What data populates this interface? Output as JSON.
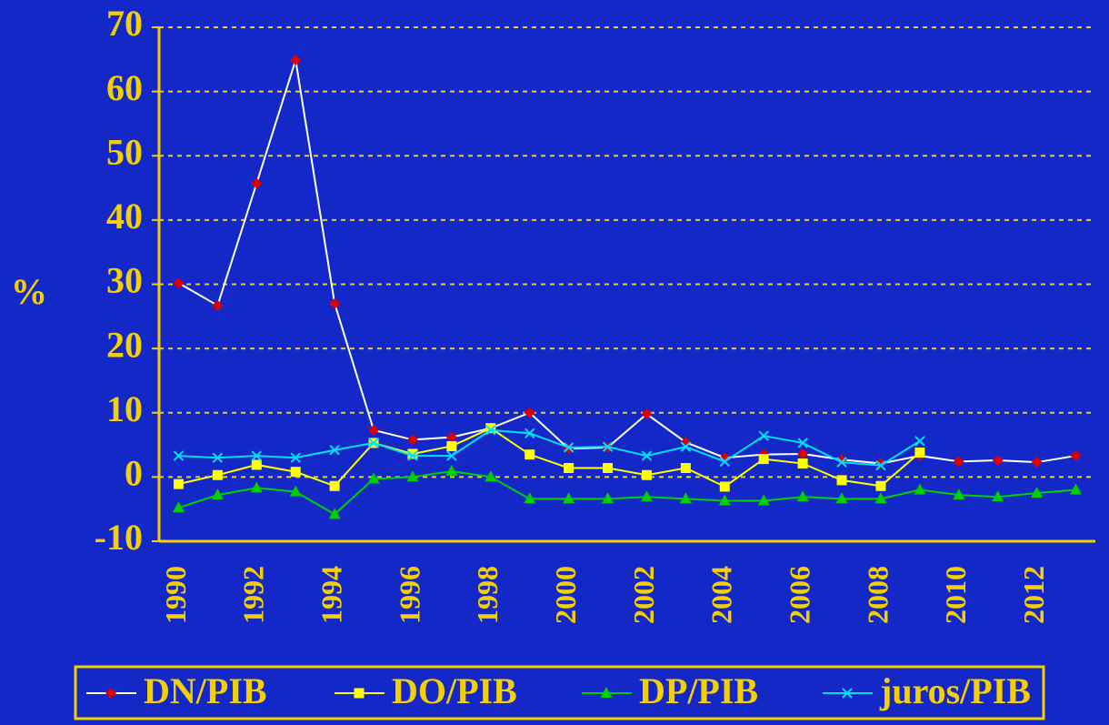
{
  "chart_data": {
    "type": "line",
    "y_label": "%",
    "categories": [
      "1990",
      null,
      "1992",
      null,
      "1994",
      null,
      "1996",
      null,
      "1998",
      null,
      "2000",
      null,
      "2002",
      null,
      "2004",
      null,
      "2006",
      null,
      "2008",
      null,
      "2010",
      null,
      "2012",
      null
    ],
    "series": [
      {
        "name": "DN/PIB",
        "color": "#e00000",
        "line_color": "#ffffff",
        "marker": "diamond",
        "values": [
          30.2,
          26.7,
          45.7,
          64.9,
          27,
          7.3,
          5.8,
          6.2,
          7.6,
          10,
          4.4,
          4.6,
          9.8,
          5.4,
          3,
          3.5,
          3.6,
          2.7,
          2.1,
          3.3,
          2.4,
          2.6,
          2.3,
          3.3
        ]
      },
      {
        "name": "DO/PIB",
        "color": "#ffff00",
        "line_color": "#ffff00",
        "marker": "square",
        "values": [
          -1.1,
          0.3,
          1.9,
          0.8,
          -1.4,
          5.3,
          3.6,
          4.8,
          7.6,
          3.5,
          1.4,
          1.4,
          0.3,
          1.4,
          -1.5,
          2.8,
          2.1,
          -0.5,
          -1.4,
          3.8,
          null,
          null,
          null,
          null
        ]
      },
      {
        "name": "DP/PIB",
        "color": "#00d000",
        "line_color": "#00d000",
        "marker": "triangle",
        "values": [
          -4.8,
          -2.8,
          -1.7,
          -2.3,
          -5.8,
          -0.3,
          0,
          0.9,
          0,
          -3.4,
          -3.4,
          -3.4,
          -3.1,
          -3.4,
          -3.7,
          -3.7,
          -3.1,
          -3.4,
          -3.4,
          -2,
          -2.8,
          -3.1,
          -2.5,
          -2
        ]
      },
      {
        "name": "juros/PIB",
        "color": "#00e0ff",
        "line_color": "#00e0ff",
        "marker": "x",
        "values": [
          3.3,
          3,
          3.3,
          3,
          4.2,
          5.3,
          3.3,
          3.3,
          7.3,
          6.8,
          4.6,
          4.7,
          3.3,
          4.7,
          2.4,
          6.4,
          5.3,
          2.3,
          1.8,
          5.6,
          null,
          null,
          null,
          null
        ]
      }
    ],
    "ylim": [
      -10,
      70
    ],
    "yticks": [
      -10,
      0,
      10,
      20,
      30,
      40,
      50,
      60,
      70
    ],
    "grid": true,
    "legend": "bottom"
  }
}
